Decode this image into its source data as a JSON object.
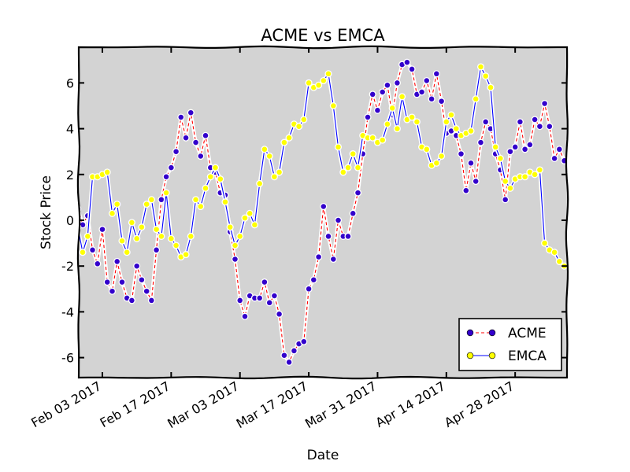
{
  "chart_data": {
    "type": "line",
    "title": "ACME vs EMCA",
    "xlabel": "Date",
    "ylabel": "Stock Price",
    "ylim": [
      -7,
      7.5
    ],
    "grid": false,
    "legend_position": "bottom-right",
    "x_start": "Jan 29 2017",
    "x_ticks": [
      {
        "label": "Feb 03 2017",
        "day": 5
      },
      {
        "label": "Feb 17 2017",
        "day": 19
      },
      {
        "label": "Mar 03 2017",
        "day": 33
      },
      {
        "label": "Mar 17 2017",
        "day": 47
      },
      {
        "label": "Mar 31 2017",
        "day": 61
      },
      {
        "label": "Apr 14 2017",
        "day": 75
      },
      {
        "label": "Apr 28 2017",
        "day": 89
      }
    ],
    "y_ticks": [
      -6,
      -4,
      -2,
      0,
      2,
      4,
      6
    ],
    "y_tick_labels": [
      "-6",
      "-4",
      "-2",
      "0",
      "2",
      "4",
      "6"
    ],
    "series": [
      {
        "name": "ACME",
        "color": "#0000ff",
        "line_color": "#ff0000",
        "marker_fill": "#3300cc",
        "line_style": "dashed",
        "values": [
          0.5,
          -0.2,
          0.2,
          -1.3,
          -1.9,
          -0.4,
          -2.7,
          -3.1,
          -1.8,
          -2.7,
          -3.4,
          -3.5,
          -2.0,
          -2.6,
          -3.1,
          -3.5,
          -1.3,
          0.9,
          1.9,
          2.3,
          3.0,
          4.5,
          3.6,
          4.7,
          3.4,
          2.8,
          3.7,
          2.3,
          2.1,
          1.2,
          1.1,
          -0.5,
          -1.7,
          -3.5,
          -4.2,
          -3.3,
          -3.4,
          -3.4,
          -2.7,
          -3.6,
          -3.3,
          -4.1,
          -5.9,
          -6.2,
          -5.7,
          -5.4,
          -5.3,
          -3.0,
          -2.6,
          -1.6,
          0.6,
          -0.7,
          -1.7,
          0.0,
          -0.7,
          -0.7,
          0.3,
          1.2,
          2.9,
          4.5,
          5.5,
          4.8,
          5.6,
          5.9,
          4.6,
          6.0,
          6.8,
          6.9,
          6.6,
          5.5,
          5.6,
          6.1,
          5.3,
          6.4,
          5.2,
          3.8,
          3.9,
          3.7,
          2.9,
          1.3,
          2.5,
          1.7,
          3.4,
          4.3,
          4.0,
          2.9,
          2.2,
          0.9,
          3.0,
          3.2,
          4.3,
          3.1,
          3.3,
          4.4,
          4.1,
          5.1,
          4.1,
          2.7,
          3.1,
          2.6
        ]
      },
      {
        "name": "EMCA",
        "color": "#0000ff",
        "line_color": "#0000ff",
        "marker_fill": "#ffff00",
        "line_style": "solid",
        "values": [
          -0.3,
          -1.4,
          -0.7,
          1.9,
          1.9,
          2.0,
          2.1,
          0.3,
          0.7,
          -0.9,
          -1.4,
          -0.1,
          -0.8,
          -0.3,
          0.7,
          0.9,
          -0.4,
          -0.7,
          1.2,
          -0.8,
          -1.1,
          -1.6,
          -1.5,
          -0.7,
          0.9,
          0.6,
          1.4,
          1.9,
          2.3,
          1.8,
          0.8,
          -0.3,
          -1.1,
          -0.7,
          0.1,
          0.3,
          -0.2,
          1.6,
          3.1,
          2.8,
          1.9,
          2.1,
          3.4,
          3.6,
          4.2,
          4.1,
          4.4,
          6.0,
          5.8,
          5.9,
          6.1,
          6.4,
          5.0,
          3.2,
          2.1,
          2.3,
          2.9,
          2.3,
          3.7,
          3.6,
          3.6,
          3.4,
          3.5,
          4.2,
          4.9,
          4.0,
          5.4,
          4.4,
          4.5,
          4.3,
          3.2,
          3.1,
          2.4,
          2.5,
          2.8,
          4.3,
          4.6,
          4.0,
          3.7,
          3.8,
          3.9,
          5.3,
          6.7,
          6.3,
          5.8,
          3.2,
          2.7,
          1.7,
          1.4,
          1.8,
          1.9,
          1.9,
          2.1,
          2.0,
          2.2,
          -1.0,
          -1.3,
          -1.4,
          -1.8,
          -2.0
        ]
      }
    ]
  }
}
